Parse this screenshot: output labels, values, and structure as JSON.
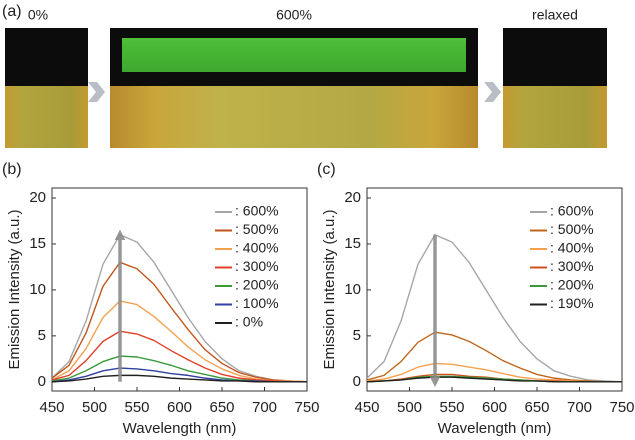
{
  "panel_a": {
    "label": "(a)",
    "captions": [
      "0%",
      "600%",
      "relaxed"
    ]
  },
  "chart_data": [
    {
      "type": "line",
      "panel_label": "(b)",
      "xlabel": "Wavelength (nm)",
      "ylabel": "Emission Intensity (a.u.)",
      "x": [
        450,
        470,
        490,
        510,
        530,
        550,
        570,
        590,
        610,
        630,
        650,
        670,
        690,
        710,
        730,
        750
      ],
      "xlim": [
        450,
        750
      ],
      "ylim": [
        -1,
        20
      ],
      "xticks": [
        450,
        500,
        550,
        600,
        650,
        700,
        750
      ],
      "yticks": [
        0,
        5,
        10,
        15,
        20
      ],
      "legend": "upper right",
      "arrow": {
        "x": 530,
        "from": 0,
        "to": 16
      },
      "series": [
        {
          "name": ": 600%",
          "color": "#a6a6a6",
          "values": [
            0.4,
            2.2,
            6.6,
            12.8,
            16.0,
            15.2,
            13.0,
            10.0,
            7.0,
            4.4,
            2.5,
            1.2,
            0.6,
            0.2,
            0.1,
            0.0
          ]
        },
        {
          "name": ": 500%",
          "color": "#c0551a",
          "values": [
            0.4,
            1.8,
            5.3,
            10.4,
            13.0,
            12.3,
            10.6,
            8.1,
            5.7,
            3.5,
            2.0,
            1.0,
            0.5,
            0.2,
            0.1,
            0.0
          ]
        },
        {
          "name": ": 400%",
          "color": "#f5a050",
          "values": [
            0.2,
            1.2,
            3.6,
            7.0,
            8.8,
            8.4,
            7.1,
            5.5,
            3.8,
            2.4,
            1.4,
            0.7,
            0.3,
            0.1,
            0.1,
            0.0
          ]
        },
        {
          "name": ": 300%",
          "color": "#e0402a",
          "values": [
            0.2,
            0.7,
            2.3,
            4.4,
            5.5,
            5.2,
            4.5,
            3.4,
            2.4,
            1.5,
            0.8,
            0.4,
            0.2,
            0.1,
            0.0,
            0.0
          ]
        },
        {
          "name": ": 200%",
          "color": "#3a9a3a",
          "values": [
            0.1,
            0.4,
            1.2,
            2.2,
            2.8,
            2.7,
            2.3,
            1.8,
            1.2,
            0.8,
            0.4,
            0.2,
            0.1,
            0.0,
            0.0,
            0.0
          ]
        },
        {
          "name": ": 100%",
          "color": "#3040a0",
          "values": [
            0.0,
            0.2,
            0.6,
            1.2,
            1.5,
            1.4,
            1.2,
            0.9,
            0.7,
            0.4,
            0.2,
            0.1,
            0.1,
            0.0,
            0.0,
            0.0
          ]
        },
        {
          "name": ": 0%",
          "color": "#202020",
          "values": [
            0.0,
            0.1,
            0.3,
            0.6,
            0.7,
            0.7,
            0.6,
            0.4,
            0.3,
            0.2,
            0.1,
            0.1,
            0.0,
            0.0,
            0.0,
            0.0
          ]
        }
      ]
    },
    {
      "type": "line",
      "panel_label": "(c)",
      "xlabel": "Wavelength (nm)",
      "ylabel": "Emission Intensity (a.u.)",
      "x": [
        450,
        470,
        490,
        510,
        530,
        550,
        570,
        590,
        610,
        630,
        650,
        670,
        690,
        710,
        730,
        750
      ],
      "xlim": [
        450,
        750
      ],
      "ylim": [
        -1,
        20
      ],
      "xticks": [
        450,
        500,
        550,
        600,
        650,
        700,
        750
      ],
      "yticks": [
        0,
        5,
        10,
        15,
        20
      ],
      "legend": "upper right",
      "arrow": {
        "x": 530,
        "from": 16,
        "to": 0
      },
      "series": [
        {
          "name": ": 600%",
          "color": "#a6a6a6",
          "values": [
            0.4,
            2.2,
            6.6,
            12.8,
            16.0,
            15.2,
            13.0,
            10.0,
            7.0,
            4.4,
            2.5,
            1.2,
            0.6,
            0.2,
            0.1,
            0.0
          ]
        },
        {
          "name": ": 500%",
          "color": "#c0651a",
          "values": [
            0.2,
            0.7,
            2.2,
            4.3,
            5.4,
            5.1,
            4.4,
            3.4,
            2.3,
            1.5,
            0.8,
            0.4,
            0.2,
            0.1,
            0.0,
            0.0
          ]
        },
        {
          "name": ": 400%",
          "color": "#f5a050",
          "values": [
            0.1,
            0.3,
            0.8,
            1.6,
            2.0,
            1.9,
            1.6,
            1.3,
            0.9,
            0.5,
            0.3,
            0.2,
            0.1,
            0.0,
            0.0,
            0.0
          ]
        },
        {
          "name": ": 300%",
          "color": "#d05020",
          "values": [
            0.0,
            0.1,
            0.3,
            0.6,
            0.8,
            0.8,
            0.6,
            0.5,
            0.3,
            0.2,
            0.1,
            0.1,
            0.0,
            0.0,
            0.0,
            0.0
          ]
        },
        {
          "name": ": 200%",
          "color": "#3a9a3a",
          "values": [
            0.0,
            0.1,
            0.2,
            0.5,
            0.6,
            0.6,
            0.5,
            0.4,
            0.3,
            0.2,
            0.1,
            0.0,
            0.0,
            0.0,
            0.0,
            0.0
          ]
        },
        {
          "name": ": 190%",
          "color": "#202020",
          "values": [
            0.0,
            0.1,
            0.2,
            0.4,
            0.5,
            0.5,
            0.4,
            0.3,
            0.2,
            0.1,
            0.1,
            0.0,
            0.0,
            0.0,
            0.0,
            0.0
          ]
        }
      ]
    }
  ]
}
